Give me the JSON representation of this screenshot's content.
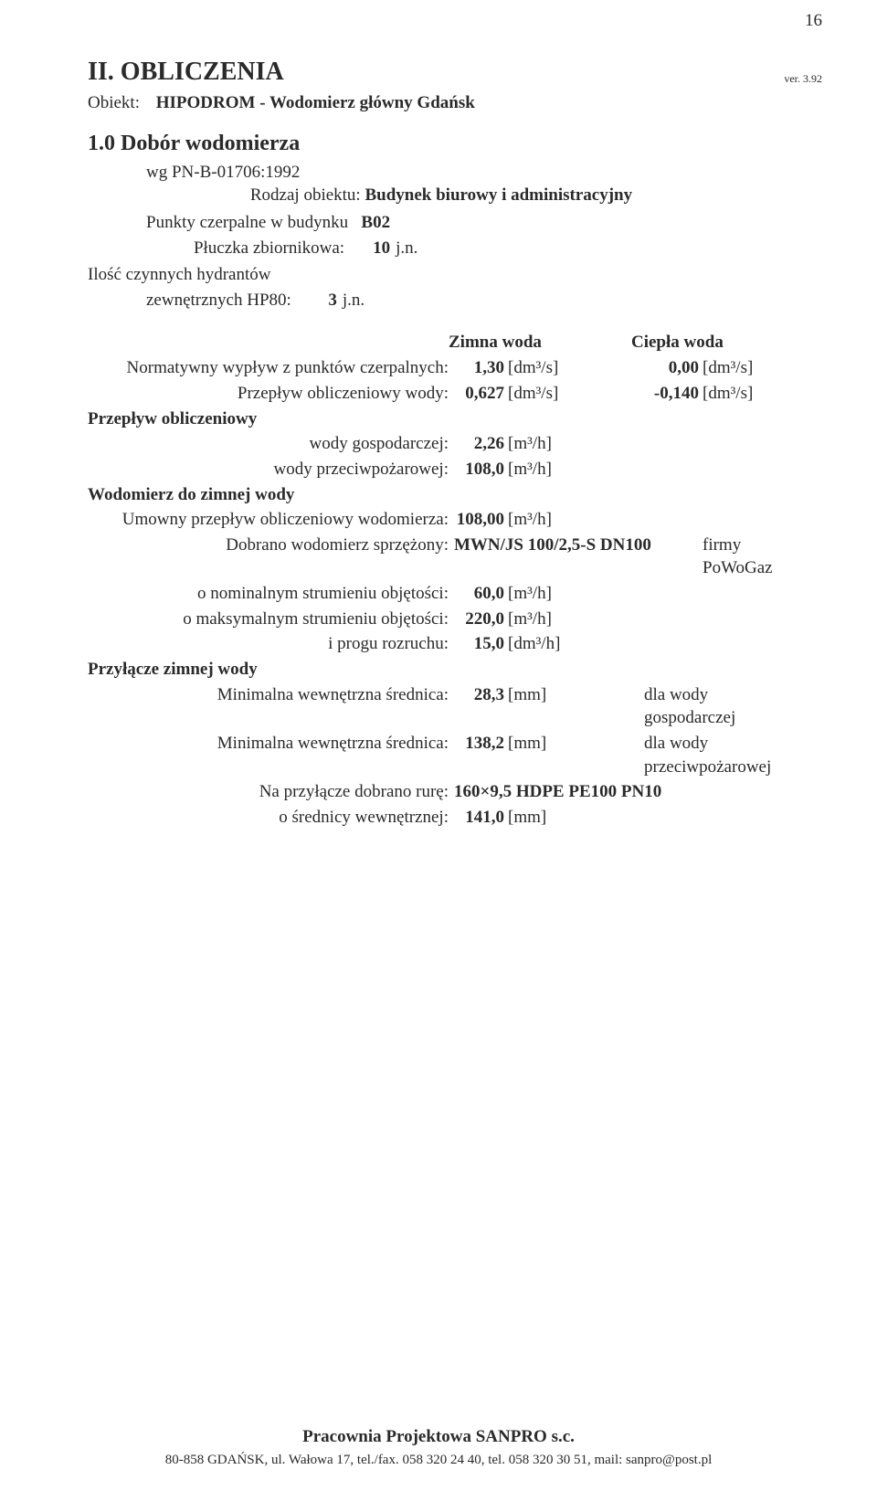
{
  "page_number": "16",
  "version": "ver. 3.92",
  "section_heading": "II. OBLICZENIA",
  "object_label": "Obiekt:",
  "object_value": "HIPODROM - Wodomierz główny Gdańsk",
  "subsection_heading": "1.0 Dobór wodomierza",
  "wg_line": "wg PN-B-01706:1992",
  "rodzaj_label": "Rodzaj obiektu:",
  "rodzaj_value": "Budynek biurowy i administracyjny",
  "kv": {
    "punkty_label": "Punkty czerpalne w budynku",
    "punkty_value": "B02",
    "pluczka_label": "Płuczka zbiornikowa:",
    "pluczka_value": "10",
    "pluczka_unit": "j.n.",
    "ilosc_line1": "Ilość czynnych hydrantów",
    "ilosc_label": "zewnętrznych HP80:",
    "ilosc_value": "3",
    "ilosc_unit": "j.n."
  },
  "col": {
    "c1": "Zimna woda",
    "c2": "Ciepła woda"
  },
  "rows": {
    "norm_label": "Normatywny wypływ z punktów czerpalnych:",
    "norm_v1": "1,30",
    "norm_u1": "[dm³/s]",
    "norm_v2": "0,00",
    "norm_u2": "[dm³/s]",
    "przw_label": "Przepływ obliczeniowy wody:",
    "przw_v1": "0,627",
    "przw_u1": "[dm³/s]",
    "przw_v2": "-0,140",
    "przw_u2": "[dm³/s]",
    "przobl_header": "Przepływ obliczeniowy",
    "gosp_label": "wody gospodarczej:",
    "gosp_v1": "2,26",
    "gosp_u1": "[m³/h]",
    "ppoz_label": "wody przeciwpożarowej:",
    "ppoz_v1": "108,0",
    "ppoz_u1": "[m³/h]",
    "wodo_header": "Wodomierz do zimnej wody",
    "umow_label": "Umowny przepływ obliczeniowy wodomierza:",
    "umow_v1": "108,00",
    "umow_u1": "[m³/h]",
    "dobr_label": "Dobrano wodomierz sprzężony:",
    "dobr_val": "MWN/JS 100/2,5-S DN100",
    "dobr_firm": "firmy PoWoGaz",
    "nom_label": "o nominalnym strumieniu objętości:",
    "nom_v1": "60,0",
    "nom_u1": "[m³/h]",
    "max_label": "o maksymalnym strumieniu objętości:",
    "max_v1": "220,0",
    "max_u1": "[m³/h]",
    "prog_label": "i progu rozruchu:",
    "prog_v1": "15,0",
    "prog_u1": "[dm³/h]",
    "przyz_header": "Przyłącze zimnej wody",
    "min1_label": "Minimalna wewnętrzna średnica:",
    "min1_v": "28,3",
    "min1_u": "[mm]",
    "min1_n": "dla wody gospodarczej",
    "min2_label": "Minimalna wewnętrzna średnica:",
    "min2_v": "138,2",
    "min2_u": "[mm]",
    "min2_n": "dla wody przeciwpożarowej",
    "na_label": "Na przyłącze dobrano rurę:",
    "na_val": "160×9,5 HDPE PE100 PN10",
    "sred_label": "o średnicy wewnętrznej:",
    "sred_v": "141,0",
    "sred_u": "[mm]"
  },
  "footer": {
    "name": "Pracownia Projektowa SANPRO s.c.",
    "addr": "80-858 GDAŃSK, ul. Wałowa 17, tel./fax. 058 320 24 40, tel. 058 320 30 51, mail: sanpro@post.pl"
  }
}
